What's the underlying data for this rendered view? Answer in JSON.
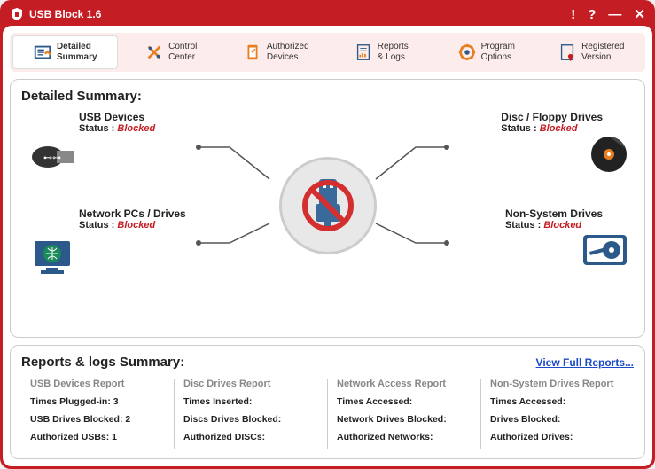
{
  "window": {
    "title": "USB Block 1.6"
  },
  "colors": {
    "brand": "#c41e24",
    "tab_bg": "#fdecec",
    "link": "#1a4bc4",
    "muted": "#888888",
    "border": "#cccccc",
    "icon_blue": "#2b5a8a",
    "icon_orange": "#e67e22"
  },
  "tabs": [
    {
      "line1": "Detailed",
      "line2": "Summary",
      "active": true
    },
    {
      "line1": "Control",
      "line2": "Center",
      "active": false
    },
    {
      "line1": "Authorized",
      "line2": "Devices",
      "active": false
    },
    {
      "line1": "Reports",
      "line2": "& Logs",
      "active": false
    },
    {
      "line1": "Program",
      "line2": "Options",
      "active": false
    },
    {
      "line1": "Registered",
      "line2": "Version",
      "active": false
    }
  ],
  "summary": {
    "title": "Detailed Summary:",
    "status_label": "Status :",
    "nodes": {
      "usb": {
        "title": "USB Devices",
        "status": "Blocked"
      },
      "disc": {
        "title": "Disc / Floppy Drives",
        "status": "Blocked"
      },
      "net": {
        "title": "Network PCs / Drives",
        "status": "Blocked"
      },
      "nonsys": {
        "title": "Non-System Drives",
        "status": "Blocked"
      }
    }
  },
  "reports": {
    "title": "Reports & logs Summary:",
    "view_link": "View Full Reports...",
    "cols": [
      {
        "title": "USB Devices Report",
        "rows": [
          "Times Plugged-in: 3",
          "USB Drives Blocked: 2",
          "Authorized USBs: 1"
        ]
      },
      {
        "title": "Disc Drives Report",
        "rows": [
          "Times Inserted:",
          "Discs Drives Blocked:",
          "Authorized DISCs:"
        ]
      },
      {
        "title": "Network Access Report",
        "rows": [
          "Times Accessed:",
          "Network Drives Blocked:",
          "Authorized Networks:"
        ]
      },
      {
        "title": "Non-System Drives Report",
        "rows": [
          "Times Accessed:",
          "Drives Blocked:",
          "Authorized Drives:"
        ]
      }
    ]
  }
}
